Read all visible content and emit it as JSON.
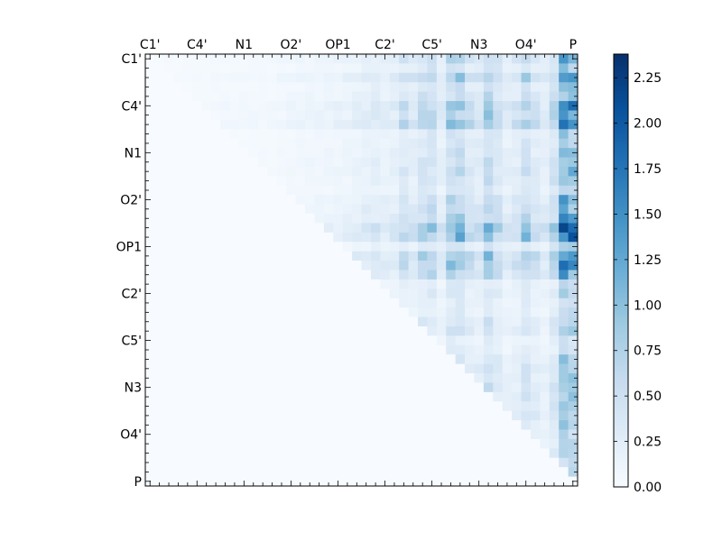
{
  "chart_data": {
    "type": "heatmap",
    "title": "",
    "xlabel": "",
    "ylabel": "",
    "n": 46,
    "tick_labels": [
      "C1'",
      "C4'",
      "N1",
      "O2'",
      "OP1",
      "C2'",
      "C5'",
      "N3",
      "O4'",
      "P"
    ],
    "tick_positions": [
      0,
      5,
      10,
      15,
      20,
      25,
      30,
      35,
      40,
      45
    ],
    "x_axis_position": "top",
    "colormap": "Blues",
    "colormap_stops": [
      "#f7fbff",
      "#deebf7",
      "#c6dbef",
      "#9ecae1",
      "#6baed6",
      "#4292c6",
      "#2171b5",
      "#08519c",
      "#08306b"
    ],
    "vmin": 0,
    "vmax": 2.38,
    "colorbar": {
      "ticks": [
        0.0,
        0.25,
        0.5,
        0.75,
        1.0,
        1.25,
        1.5,
        1.75,
        2.0,
        2.25
      ],
      "tick_labels": [
        "0.00",
        "0.25",
        "0.50",
        "0.75",
        "1.00",
        "1.25",
        "1.50",
        "1.75",
        "2.00",
        "2.25"
      ],
      "placement": "right"
    },
    "data_notes": "Upper-triangular pairwise matrix (46x46); values are estimated from the color scale. Entries below the diagonal are 0.",
    "col_profile": [
      0.02,
      0.03,
      0.03,
      0.03,
      0.05,
      0.06,
      0.06,
      0.07,
      0.07,
      0.07,
      0.08,
      0.08,
      0.08,
      0.08,
      0.1,
      0.12,
      0.14,
      0.15,
      0.15,
      0.17,
      0.18,
      0.2,
      0.25,
      0.3,
      0.35,
      0.28,
      0.32,
      0.55,
      0.4,
      0.65,
      0.7,
      0.35,
      0.85,
      0.9,
      0.55,
      0.45,
      0.9,
      0.6,
      0.35,
      0.45,
      0.75,
      0.5,
      0.35,
      0.7,
      1.65,
      1.5
    ],
    "row_profile": [
      0.8,
      0.55,
      1.0,
      0.6,
      0.7,
      1.05,
      0.95,
      1.15,
      0.5,
      0.55,
      0.6,
      0.65,
      0.7,
      0.6,
      0.5,
      0.75,
      0.8,
      0.9,
      1.35,
      1.25,
      0.5,
      1.1,
      1.05,
      0.9,
      0.4,
      0.45,
      0.35,
      0.35,
      0.5,
      0.55,
      0.3,
      0.35,
      0.5,
      0.6,
      0.55,
      0.6,
      0.6,
      0.55,
      0.6,
      0.5,
      0.45,
      0.45,
      0.45,
      0.4,
      0.4,
      0.0
    ]
  }
}
